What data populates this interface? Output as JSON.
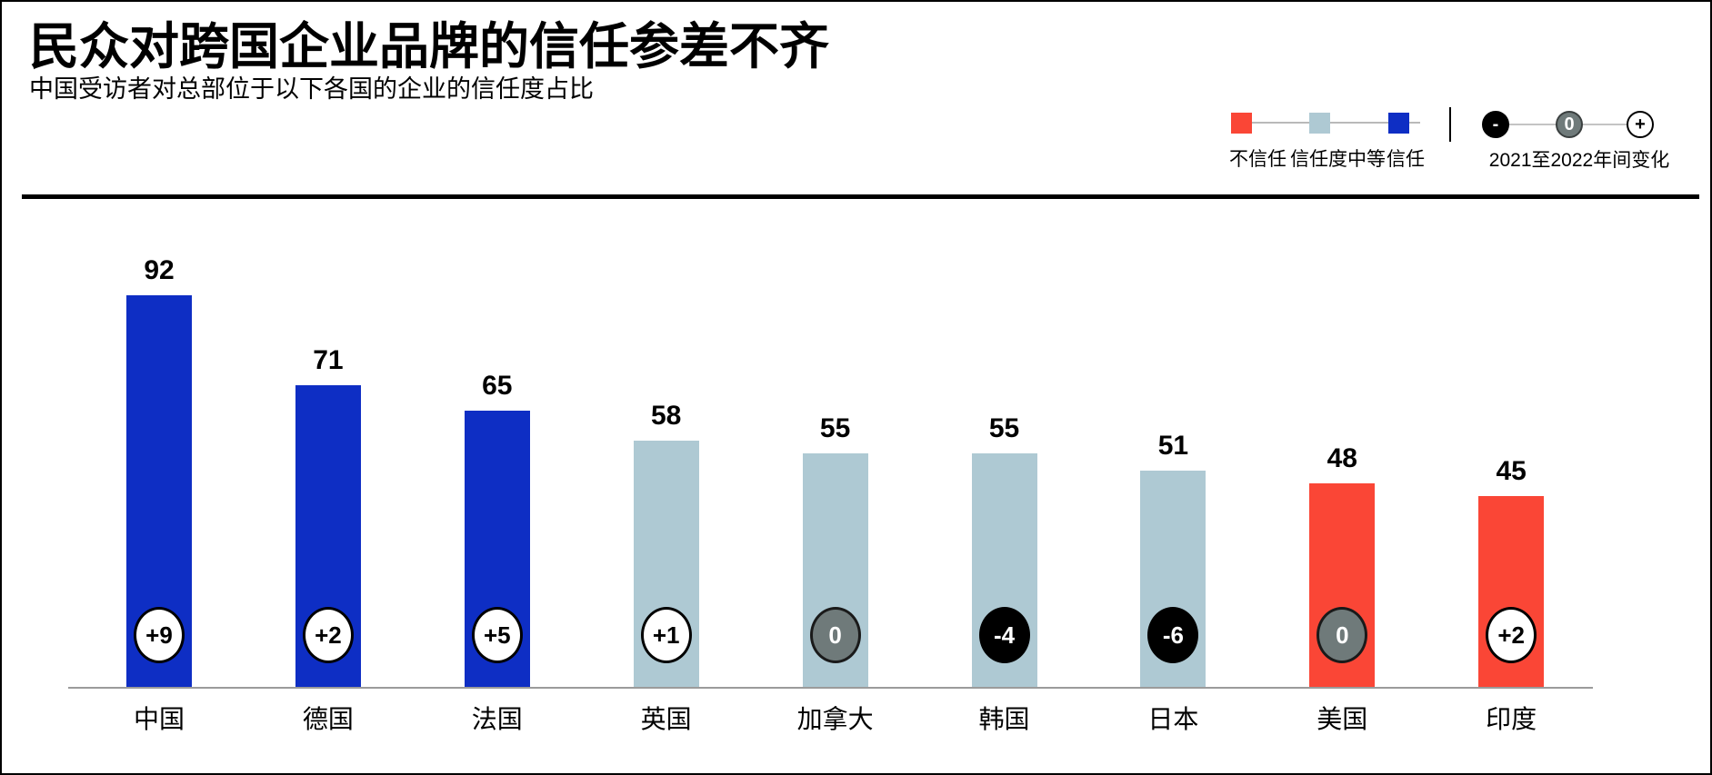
{
  "header": {
    "title": "民众对跨国企业品牌的信任参差不齐",
    "subtitle": "中国受访者对总部位于以下各国的企业的信任度占比"
  },
  "legend": {
    "trust": {
      "items": [
        {
          "label": "不信任",
          "level": "distrust"
        },
        {
          "label": "信任度中等",
          "level": "neutral"
        },
        {
          "label": "信任",
          "level": "trust"
        }
      ]
    },
    "change": {
      "minus_symbol": "-",
      "zero_symbol": "0",
      "plus_symbol": "+",
      "label": "2021至2022年间变化"
    }
  },
  "colors": {
    "distrust": "#fa4636",
    "neutral": "#aec9d3",
    "trust": "#0e2ec4",
    "badge_positive_fill": "#ffffff",
    "badge_zero_fill": "#6f7a7a",
    "badge_negative_fill": "#000000",
    "axis": "#9b9b9b"
  },
  "chart_data": {
    "type": "bar",
    "title": "民众对跨国企业品牌的信任参差不齐",
    "subtitle": "中国受访者对总部位于以下各国的企业的信任度占比",
    "categories": [
      "中国",
      "德国",
      "法国",
      "英国",
      "加拿大",
      "韩国",
      "日本",
      "美国",
      "印度"
    ],
    "values": [
      92,
      71,
      65,
      58,
      55,
      55,
      51,
      48,
      45
    ],
    "changes": [
      9,
      2,
      5,
      1,
      0,
      -4,
      -6,
      0,
      2
    ],
    "levels": [
      "trust",
      "trust",
      "trust",
      "neutral",
      "neutral",
      "neutral",
      "neutral",
      "distrust",
      "distrust"
    ],
    "xlabel": "",
    "ylabel": "",
    "ylim": [
      0,
      100
    ],
    "grid": false,
    "value_labels": true,
    "legend_position": "top-right"
  }
}
